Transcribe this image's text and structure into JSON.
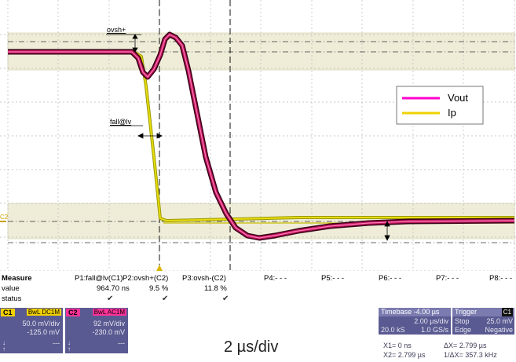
{
  "scope": {
    "annotations": {
      "ovsh_plus": "ovsh+",
      "fall_lv": "fall@lv",
      "c2_marker": "C2"
    },
    "legend": [
      {
        "name": "Vout",
        "color": "#ff00cc"
      },
      {
        "name": "Ip",
        "color": "#f0d000"
      }
    ],
    "colors": {
      "vout": "#b0125a",
      "ip": "#d6c800",
      "band": "#efedd8"
    }
  },
  "measure": {
    "title": "Measure",
    "row_labels": [
      "value",
      "status"
    ],
    "columns": [
      {
        "name": "P1:fall@lv(C1)",
        "value": "964.70 ns",
        "status": "✔"
      },
      {
        "name": "P2:ovsh+(C2)",
        "value": "9.5 %",
        "status": "✔"
      },
      {
        "name": "P3:ovsh-(C2)",
        "value": "11.8 %",
        "status": "✔"
      },
      {
        "name": "P4:- - -",
        "value": "",
        "status": ""
      },
      {
        "name": "P5:- - -",
        "value": "",
        "status": ""
      },
      {
        "name": "P6:- - -",
        "value": "",
        "status": ""
      },
      {
        "name": "P7:- - -",
        "value": "",
        "status": ""
      },
      {
        "name": "P8:- - -",
        "value": "",
        "status": ""
      }
    ]
  },
  "channels": [
    {
      "tag": "C1",
      "tag_color": "#f0d000",
      "coupling": "BwL DC1M",
      "scale": "50.0 mV/div",
      "offset": "-125.0 mV",
      "extra": "---"
    },
    {
      "tag": "C2",
      "tag_color": "#ff3399",
      "coupling": "BwL AC1M",
      "scale": "92 mV/div",
      "offset": "-230.0 mV",
      "extra": "---"
    }
  ],
  "timebase": {
    "header": "Timebase  -4.00 µs",
    "per_div": "2.00 µs/div",
    "samples": "20.0 kS",
    "rate": "1.0 GS/s"
  },
  "trigger": {
    "header": "Trigger",
    "channel": "C1",
    "mode": "Stop",
    "level": "25.0 mV",
    "type": "Edge",
    "slope": "Negative"
  },
  "cursors": {
    "x1": "X1=       0 ns",
    "dx": "ΔX=    2.799 µs",
    "x2": "X2=  2.799 µs",
    "inv_dx": "1/ΔX=  357.3 kHz"
  },
  "caption": "2 µs/div"
}
